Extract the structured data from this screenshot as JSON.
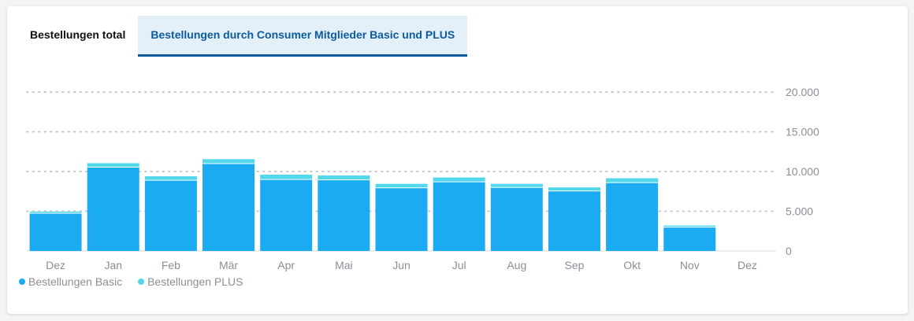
{
  "tabs": [
    {
      "label": "Bestellungen total",
      "active": false
    },
    {
      "label": "Bestellungen durch Consumer Mitglieder Basic und PLUS",
      "active": true
    }
  ],
  "colors": {
    "basic": "#1aabf2",
    "plus": "#52d8ea",
    "accent": "#0b5b9c"
  },
  "chart_data": {
    "type": "bar",
    "stacked": true,
    "categories": [
      "Dez",
      "Jan",
      "Feb",
      "Mär",
      "Apr",
      "Mai",
      "Jun",
      "Jul",
      "Aug",
      "Sep",
      "Okt",
      "Nov",
      "Dez"
    ],
    "series": [
      {
        "name": "Bestellungen Basic",
        "values": [
          4700,
          10500,
          8850,
          10950,
          8950,
          8900,
          7900,
          8650,
          7950,
          7500,
          8550,
          2950,
          0
        ]
      },
      {
        "name": "Bestellungen PLUS",
        "values": [
          250,
          550,
          550,
          600,
          650,
          600,
          550,
          600,
          500,
          500,
          600,
          250,
          0
        ]
      }
    ],
    "yticks": [
      "0",
      "5.000",
      "10.000",
      "15.000",
      "20.000"
    ],
    "ylim": [
      0,
      20000
    ],
    "grid": true,
    "legend_position": "bottom-left"
  }
}
